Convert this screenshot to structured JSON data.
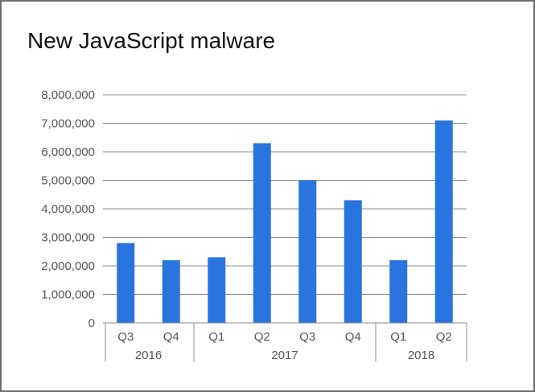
{
  "chart_data": {
    "type": "bar",
    "title": "New JavaScript malware",
    "xlabel": "",
    "ylabel": "",
    "ylim": [
      0,
      8000000
    ],
    "ytick_values": [
      0,
      1000000,
      2000000,
      3000000,
      4000000,
      5000000,
      6000000,
      7000000,
      8000000
    ],
    "ytick_labels": [
      "0",
      "1,000,000",
      "2,000,000",
      "3,000,000",
      "4,000,000",
      "5,000,000",
      "6,000,000",
      "7,000,000",
      "8,000,000"
    ],
    "categories": [
      "Q3",
      "Q4",
      "Q1",
      "Q2",
      "Q3",
      "Q4",
      "Q1",
      "Q2"
    ],
    "groups": [
      {
        "label": "2016",
        "count": 2
      },
      {
        "label": "2017",
        "count": 4
      },
      {
        "label": "2018",
        "count": 2
      }
    ],
    "values": [
      2800000,
      2200000,
      2300000,
      6300000,
      5000000,
      4300000,
      2200000,
      7100000
    ],
    "color": "#2a74e0",
    "grid": true,
    "legend": "none"
  }
}
